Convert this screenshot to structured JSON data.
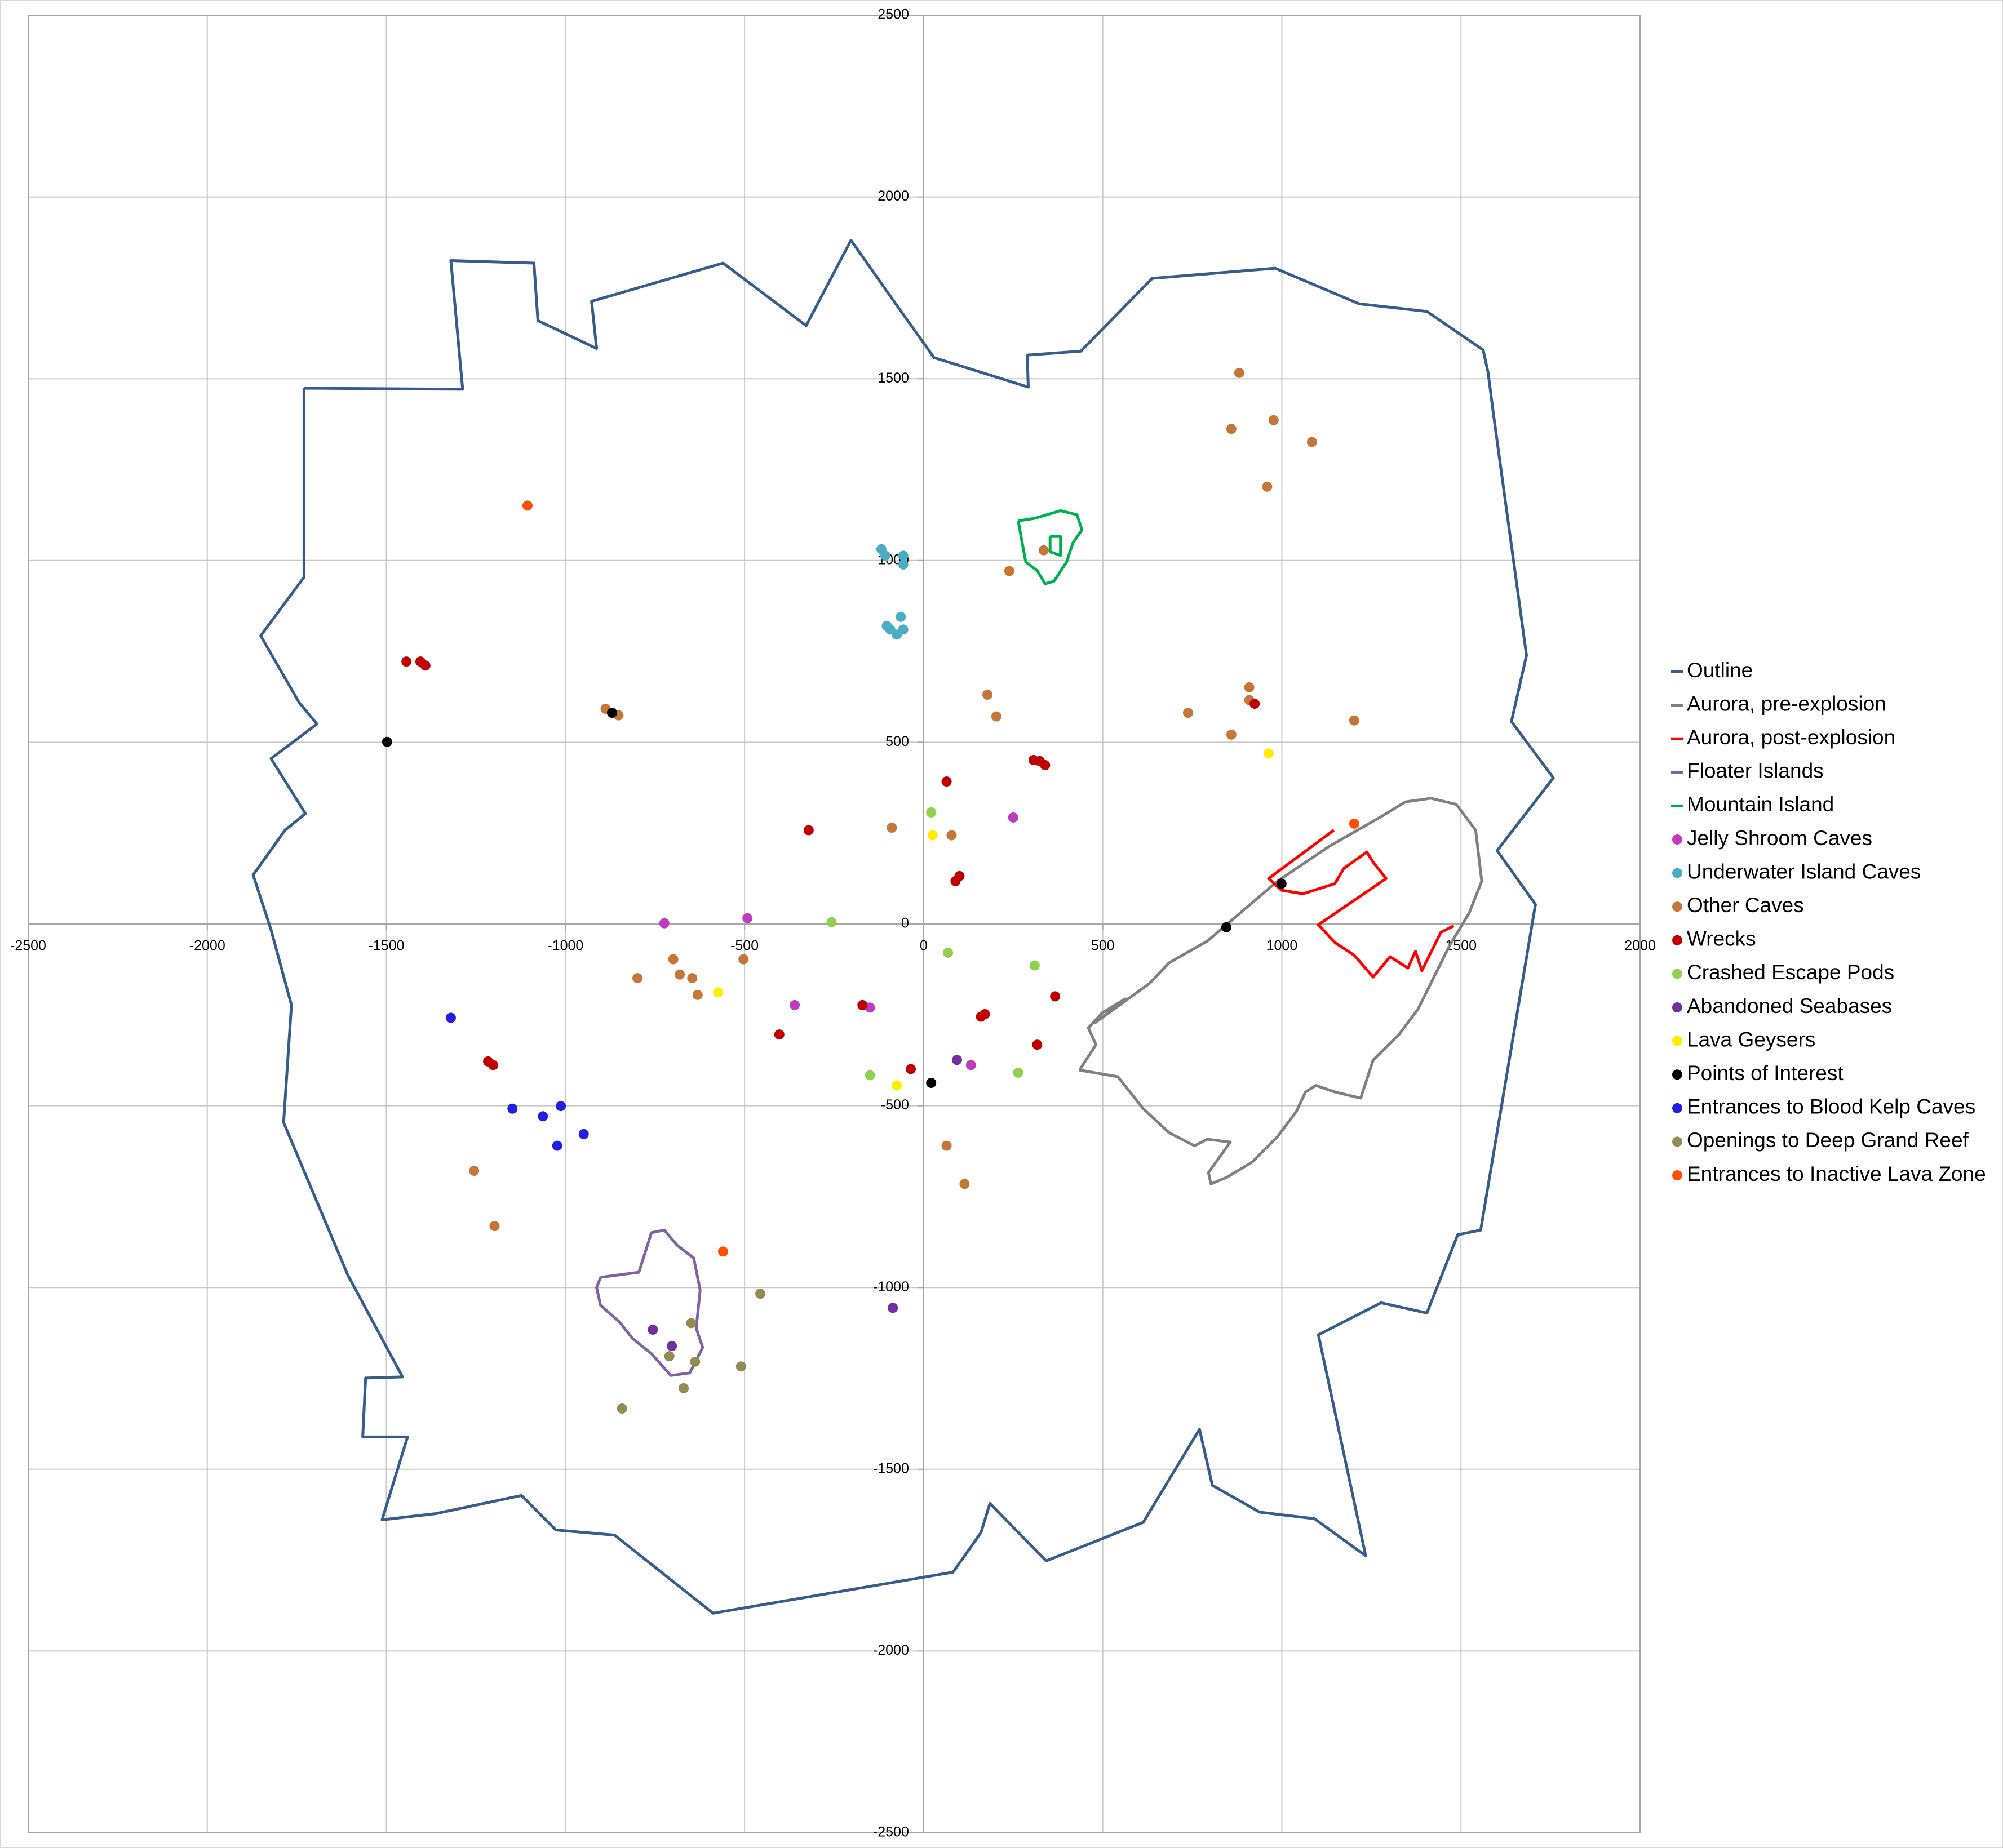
{
  "chart_data": {
    "type": "scatter",
    "xlim": [
      -2500,
      2000
    ],
    "ylim": [
      -2500,
      2500
    ],
    "xticks": [
      -2500,
      -2000,
      -1500,
      -1000,
      -500,
      0,
      500,
      1000,
      1500,
      2000
    ],
    "yticks": [
      -2500,
      -2000,
      -1500,
      -1000,
      -500,
      0,
      500,
      1000,
      1500,
      2000,
      2500
    ],
    "grid": true,
    "legend": "right",
    "series": [
      {
        "name": "Outline",
        "color": "#385d8a",
        "mode": "lines",
        "x": [
          -1730,
          -1287,
          -1320,
          -1088,
          -1077,
          -913,
          -927,
          -560,
          -328,
          -203,
          -78,
          29,
          292,
          289,
          439,
          638,
          981,
          1216,
          1405,
          1562,
          1576,
          1591,
          1683,
          1641,
          1758,
          1601,
          1708,
          1555,
          1491,
          1405,
          1277,
          1102,
          1234,
          1091,
          938,
          806,
          770,
          613,
          342,
          185,
          160,
          82,
          -588,
          -863,
          -1027,
          -1123,
          -1362,
          -1512,
          -1441,
          -1566,
          -1558,
          -1455,
          -1608,
          -1787,
          -1765,
          -1822,
          -1872,
          -1783,
          -1726,
          -1822,
          -1694,
          -1744,
          -1851,
          -1730,
          -1730
        ],
        "y": [
          1474,
          1471,
          1825,
          1818,
          1660,
          1583,
          1713,
          1818,
          1646,
          1881,
          1706,
          1558,
          1477,
          1565,
          1576,
          1776,
          1804,
          1706,
          1685,
          1579,
          1516,
          1400,
          739,
          557,
          402,
          202,
          54,
          -842,
          -855,
          -1070,
          -1042,
          -1130,
          -1738,
          -1636,
          -1618,
          -1544,
          -1390,
          -1646,
          -1752,
          -1594,
          -1674,
          -1783,
          -1896,
          -1681,
          -1667,
          -1572,
          -1622,
          -1639,
          -1411,
          -1411,
          -1249,
          -1246,
          -965,
          -546,
          -223,
          -16,
          135,
          258,
          304,
          455,
          550,
          610,
          793,
          954,
          1474
        ]
      },
      {
        "name": "Aurora, pre-explosion",
        "color": "#808080",
        "mode": "lines",
        "x": [
          435,
          481,
          460,
          499,
          563,
          478,
          631,
          685,
          792,
          988,
          1131,
          1273,
          1345,
          1416,
          1487,
          1541,
          1558,
          1523,
          1469,
          1416,
          1380,
          1327,
          1255,
          1220,
          1148,
          1095,
          1066,
          1041,
          988,
          917,
          846,
          802,
          795,
          856,
          792,
          756,
          685,
          613,
          542,
          435
        ],
        "y": [
          -402,
          -332,
          -286,
          -244,
          -206,
          -272,
          -163,
          -107,
          -47,
          118,
          213,
          293,
          336,
          346,
          329,
          258,
          118,
          30,
          -58,
          -163,
          -234,
          -304,
          -374,
          -479,
          -462,
          -444,
          -462,
          -515,
          -585,
          -655,
          -697,
          -715,
          -684,
          -600,
          -592,
          -610,
          -574,
          -508,
          -420,
          -402
        ]
      },
      {
        "name": "Aurora, post-explosion",
        "color": "#ff0000",
        "mode": "lines",
        "x": [
          1145,
          963,
          999,
          1059,
          1148,
          1173,
          1237,
          1255,
          1291,
          1102,
          1148,
          1202,
          1255,
          1302,
          1352,
          1373,
          1391,
          1444,
          1480
        ],
        "y": [
          258,
          125,
          93,
          83,
          111,
          153,
          198,
          170,
          125,
          -2,
          -51,
          -86,
          -146,
          -90,
          -121,
          -75,
          -128,
          -23,
          -5
        ]
      },
      {
        "name": "Floater Islands",
        "color": "#8064a2",
        "mode": "lines",
        "x": [
          -902,
          -849,
          -795,
          -760,
          -724,
          -688,
          -642,
          -624,
          -635,
          -617,
          -653,
          -706,
          -760,
          -813,
          -849,
          -902,
          -913,
          -902
        ],
        "y": [
          -972,
          -965,
          -958,
          -849,
          -842,
          -884,
          -919,
          -1007,
          -1112,
          -1165,
          -1235,
          -1242,
          -1182,
          -1140,
          -1095,
          -1049,
          -1000,
          -972
        ]
      },
      {
        "name": "Mountain Island",
        "color": "#00b050",
        "mode": "lines",
        "x": [
          264,
          310,
          382,
          428,
          442,
          417,
          399,
          364,
          339,
          317,
          285,
          275,
          264,
          null,
          353,
          382,
          382,
          353,
          353
        ],
        "y": [
          1109,
          1116,
          1137,
          1126,
          1084,
          1049,
          996,
          943,
          936,
          972,
          996,
          1049,
          1109,
          null,
          1066,
          1066,
          1014,
          1024,
          1066
        ]
      },
      {
        "name": "Jelly Shroom Caves",
        "color": "#bf3cbf",
        "mode": "markers",
        "x": [
          -724,
          -492,
          -360,
          -150,
          132,
          250
        ],
        "y": [
          2,
          16,
          -223,
          -230,
          -388,
          293
        ]
      },
      {
        "name": "Underwater Island Caves",
        "color": "#4bacc6",
        "mode": "markers",
        "x": [
          -118,
          -107,
          -57,
          -57,
          -103,
          -93,
          -75,
          -64,
          -57
        ],
        "y": [
          1031,
          1013,
          1013,
          989,
          820,
          810,
          796,
          845,
          810
        ]
      },
      {
        "name": "Other Caves",
        "color": "#c5773a",
        "mode": "markers",
        "x": [
          881,
          859,
          977,
          1084,
          959,
          335,
          239,
          178,
          203,
          738,
          859,
          909,
          909,
          1202,
          -89,
          78,
          -888,
          -852,
          -699,
          -799,
          -681,
          -646,
          -631,
          -503,
          -1255,
          -1198,
          64,
          114
        ],
        "y": [
          1516,
          1362,
          1386,
          1326,
          1203,
          1028,
          971,
          631,
          571,
          581,
          521,
          651,
          616,
          560,
          265,
          244,
          592,
          574,
          -97,
          -149,
          -139,
          -149,
          -195,
          -97,
          -679,
          -831,
          -610,
          -715
        ]
      },
      {
        "name": "Wrecks",
        "color": "#c00000",
        "mode": "markers",
        "x": [
          -1444,
          -1405,
          -1391,
          64,
          307,
          324,
          339,
          -321,
          89,
          100,
          924,
          367,
          160,
          171,
          -171,
          -403,
          -36,
          317,
          -1216,
          -1202
        ],
        "y": [
          722,
          722,
          711,
          392,
          451,
          448,
          437,
          258,
          118,
          132,
          606,
          -199,
          -255,
          -248,
          -223,
          -304,
          -399,
          -332,
          -378,
          -388
        ]
      },
      {
        "name": "Crashed Escape Pods",
        "color": "#92d050",
        "mode": "markers",
        "x": [
          21,
          -257,
          68,
          310,
          -150,
          264
        ],
        "y": [
          307,
          5,
          -79,
          -114,
          -416,
          -409
        ]
      },
      {
        "name": "Abandoned Seabases",
        "color": "#7030a0",
        "mode": "markers",
        "x": [
          93,
          -86,
          -756,
          -703
        ],
        "y": [
          -374,
          -1056,
          -1116,
          -1161
        ]
      },
      {
        "name": "Lava Geysers",
        "color": "#ffee00",
        "mode": "markers",
        "x": [
          25,
          963,
          -574,
          -75
        ],
        "y": [
          244,
          469,
          -188,
          -444
        ]
      },
      {
        "name": "Points of Interest",
        "color": "#000000",
        "mode": "markers",
        "x": [
          -1498,
          -870,
          845,
          999,
          21
        ],
        "y": [
          501,
          581,
          -9,
          111,
          -437
        ]
      },
      {
        "name": "Entrances to Blood Kelp Caves",
        "color": "#2020e0",
        "mode": "markers",
        "x": [
          -1320,
          -1148,
          -1063,
          -1013,
          -1023,
          -949
        ],
        "y": [
          -258,
          -508,
          -529,
          -501,
          -610,
          -578
        ]
      },
      {
        "name": "Openings to Deep Grand Reef",
        "color": "#948a54",
        "mode": "markers",
        "x": [
          -456,
          -649,
          -638,
          -710,
          -510,
          -670,
          -842
        ],
        "y": [
          -1017,
          -1098,
          -1204,
          -1189,
          -1217,
          -1277,
          -1333
        ]
      },
      {
        "name": "Entrances to Inactive Lava Zone",
        "color": "#ff5000",
        "mode": "markers",
        "x": [
          -1106,
          -560,
          1202
        ],
        "y": [
          1151,
          -901,
          276
        ]
      }
    ]
  }
}
